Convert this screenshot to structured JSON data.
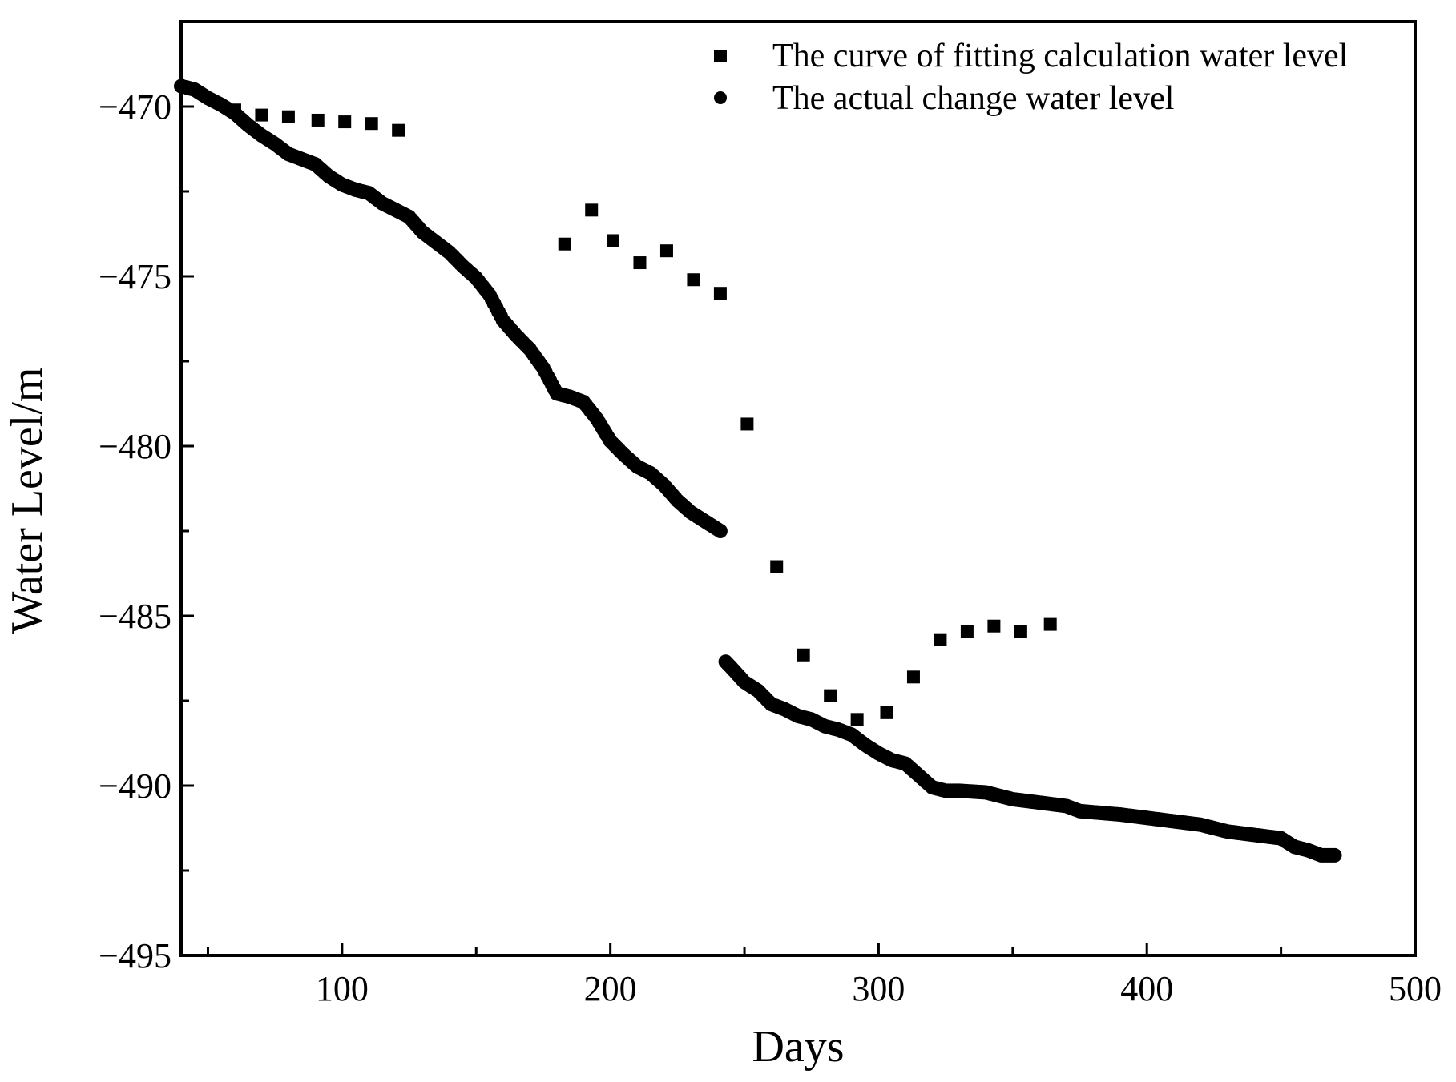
{
  "chart_data": {
    "type": "scatter",
    "title": "",
    "xlabel": "Days",
    "ylabel": "Water Level/m",
    "xlim": [
      40,
      500
    ],
    "ylim": [
      -495,
      -467.5
    ],
    "xticks": [
      100,
      200,
      300,
      400,
      500
    ],
    "xtick_labels": [
      "100",
      "200",
      "300",
      "400",
      "500"
    ],
    "yticks": [
      -470,
      -475,
      -480,
      -485,
      -490,
      -495
    ],
    "ytick_labels": [
      "−470",
      "−475",
      "−480",
      "−485",
      "−490",
      "−495"
    ],
    "grid": false,
    "legend_position": "top-right",
    "series": [
      {
        "name": "The curve of fitting calculation water level",
        "marker": "square",
        "color": "#000000",
        "points": [
          [
            60,
            -470.1
          ],
          [
            70,
            -470.25
          ],
          [
            80,
            -470.3
          ],
          [
            91,
            -470.4
          ],
          [
            101,
            -470.45
          ],
          [
            111,
            -470.5
          ],
          [
            121,
            -470.7
          ],
          [
            183,
            -474.05
          ],
          [
            193,
            -473.05
          ],
          [
            201,
            -473.95
          ],
          [
            211,
            -474.6
          ],
          [
            221,
            -474.25
          ],
          [
            231,
            -475.1
          ],
          [
            241,
            -475.5
          ],
          [
            251,
            -479.35
          ],
          [
            262,
            -483.55
          ],
          [
            272,
            -486.15
          ],
          [
            282,
            -487.35
          ],
          [
            292,
            -488.05
          ],
          [
            303,
            -487.85
          ],
          [
            313,
            -486.8
          ],
          [
            323,
            -485.7
          ],
          [
            333,
            -485.45
          ],
          [
            343,
            -485.3
          ],
          [
            353,
            -485.45
          ],
          [
            364,
            -485.25
          ]
        ]
      },
      {
        "name": "The actual change water level",
        "marker": "circle",
        "color": "#000000",
        "points": [
          [
            40,
            -469.4
          ],
          [
            45,
            -469.5
          ],
          [
            50,
            -469.75
          ],
          [
            55,
            -469.95
          ],
          [
            60,
            -470.2
          ],
          [
            65,
            -470.55
          ],
          [
            70,
            -470.85
          ],
          [
            75,
            -471.1
          ],
          [
            80,
            -471.4
          ],
          [
            85,
            -471.55
          ],
          [
            90,
            -471.7
          ],
          [
            95,
            -472.05
          ],
          [
            100,
            -472.3
          ],
          [
            105,
            -472.45
          ],
          [
            110,
            -472.55
          ],
          [
            115,
            -472.85
          ],
          [
            120,
            -473.05
          ],
          [
            125,
            -473.25
          ],
          [
            130,
            -473.7
          ],
          [
            135,
            -474.0
          ],
          [
            140,
            -474.3
          ],
          [
            145,
            -474.7
          ],
          [
            150,
            -475.05
          ],
          [
            155,
            -475.55
          ],
          [
            160,
            -476.3
          ],
          [
            165,
            -476.75
          ],
          [
            170,
            -477.15
          ],
          [
            175,
            -477.7
          ],
          [
            180,
            -478.45
          ],
          [
            185,
            -478.55
          ],
          [
            190,
            -478.7
          ],
          [
            195,
            -479.2
          ],
          [
            200,
            -479.85
          ],
          [
            205,
            -480.25
          ],
          [
            210,
            -480.6
          ],
          [
            215,
            -480.8
          ],
          [
            220,
            -481.15
          ],
          [
            225,
            -481.6
          ],
          [
            230,
            -481.95
          ],
          [
            235,
            -482.2
          ],
          [
            241,
            -482.5
          ],
          [
            243,
            -486.35
          ],
          [
            246,
            -486.6
          ],
          [
            250,
            -486.95
          ],
          [
            255,
            -487.2
          ],
          [
            260,
            -487.6
          ],
          [
            265,
            -487.75
          ],
          [
            270,
            -487.95
          ],
          [
            275,
            -488.05
          ],
          [
            280,
            -488.25
          ],
          [
            285,
            -488.35
          ],
          [
            290,
            -488.5
          ],
          [
            295,
            -488.8
          ],
          [
            300,
            -489.05
          ],
          [
            305,
            -489.25
          ],
          [
            310,
            -489.35
          ],
          [
            315,
            -489.7
          ],
          [
            320,
            -490.05
          ],
          [
            325,
            -490.15
          ],
          [
            330,
            -490.15
          ],
          [
            340,
            -490.2
          ],
          [
            350,
            -490.4
          ],
          [
            360,
            -490.5
          ],
          [
            370,
            -490.6
          ],
          [
            375,
            -490.75
          ],
          [
            390,
            -490.85
          ],
          [
            400,
            -490.95
          ],
          [
            410,
            -491.05
          ],
          [
            420,
            -491.15
          ],
          [
            425,
            -491.25
          ],
          [
            430,
            -491.35
          ],
          [
            440,
            -491.45
          ],
          [
            450,
            -491.55
          ],
          [
            455,
            -491.8
          ],
          [
            460,
            -491.9
          ],
          [
            465,
            -492.05
          ],
          [
            470,
            -492.05
          ]
        ]
      }
    ]
  }
}
